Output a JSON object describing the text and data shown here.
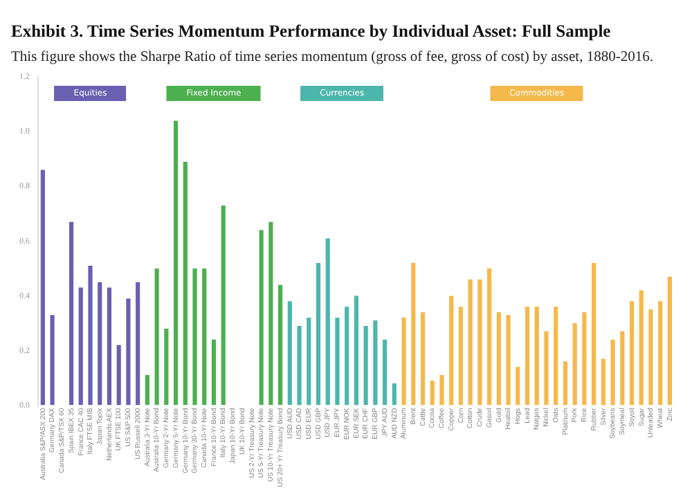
{
  "chart_data": {
    "type": "bar",
    "title": "Exhibit 3. Time Series Momentum Performance by Individual Asset: Full Sample",
    "subtitle": "This figure shows the Sharpe Ratio of time series momentum (gross of fee, gross of cost) by asset, 1880-2016.",
    "categories": [
      "Australia S&P/ASX 200",
      "Germany DAX",
      "Canada S&P/TSX 60",
      "Spain IBEX 35",
      "France CAC 40",
      "Italy FTSE MIB",
      "Japan Topix",
      "Netherlands AEX",
      "UK FTSE 100",
      "US S&P 500",
      "US Russell 2000",
      "Australia 3-Yr Note",
      "Australia 10-Yr Bond",
      "Germany 2-Yr Note",
      "Germany 5-Yr Note",
      "Germany 10-Yr Bond",
      "Germany 30-Yr Bond",
      "Canada 10-Yr Note",
      "France 10-Yr Bond",
      "Italy 10-Yr Bond",
      "Japan 10-Yr Bond",
      "UK 10-Yr Bond",
      "US 2-Yr Treasury Note",
      "US 5-Yr Treasury Note",
      "US 10-Yr Treasury Note",
      "US 20+ Yr Treasury Bond",
      "USD AUD",
      "USD CAD",
      "USD EUR",
      "USD GBP",
      "USD JPY",
      "EUR JPY",
      "EUR NOK",
      "EUR SEK",
      "EUR CHF",
      "EUR GBP",
      "JPY AUD",
      "AUD NZD",
      "Aluminum",
      "Brent",
      "Cattle",
      "Cocoa",
      "Coffee",
      "Copper",
      "Corn",
      "Cotton",
      "Crude",
      "Gasoil",
      "Gold",
      "Heatoil",
      "Hogs",
      "Lead",
      "Natgas",
      "Nickel",
      "Oats",
      "Platinum",
      "Pork",
      "Rice",
      "Rubber",
      "Silver",
      "Soybeans",
      "Soymeal",
      "Soyoil",
      "Sugar",
      "Unleaded",
      "Wheat",
      "Zinc"
    ],
    "series": [
      {
        "name": "Equities",
        "color": "#6a5fb0",
        "values": [
          0.86,
          0.33,
          null,
          0.67,
          0.43,
          0.51,
          0.45,
          0.43,
          0.22,
          0.39,
          0.45,
          null,
          null,
          null,
          null,
          null,
          null,
          null,
          null,
          null,
          null,
          null,
          null,
          null,
          null,
          null,
          null,
          null,
          null,
          null,
          null,
          null,
          null,
          null,
          null,
          null,
          null,
          null,
          null,
          null,
          null,
          null,
          null,
          null,
          null,
          null,
          null,
          null,
          null,
          null,
          null,
          null,
          null,
          null,
          null,
          null,
          null,
          null,
          null,
          null,
          null,
          null,
          null,
          null,
          null,
          null,
          null
        ]
      },
      {
        "name": "Fixed Income",
        "color": "#4caf50",
        "values": [
          null,
          null,
          null,
          null,
          null,
          null,
          null,
          null,
          null,
          null,
          null,
          0.11,
          0.5,
          0.28,
          1.04,
          0.89,
          0.5,
          0.5,
          0.24,
          0.73,
          null,
          null,
          null,
          0.64,
          0.67,
          0.44,
          null,
          null,
          null,
          null,
          null,
          null,
          null,
          null,
          null,
          null,
          null,
          null,
          null,
          null,
          null,
          null,
          null,
          null,
          null,
          null,
          null,
          null,
          null,
          null,
          null,
          null,
          null,
          null,
          null,
          null,
          null,
          null,
          null,
          null,
          null,
          null,
          null,
          null,
          null,
          null,
          null
        ]
      },
      {
        "name": "Currencies",
        "color": "#4db6ac",
        "values": [
          null,
          null,
          null,
          null,
          null,
          null,
          null,
          null,
          null,
          null,
          null,
          null,
          null,
          null,
          null,
          null,
          null,
          null,
          null,
          null,
          null,
          null,
          null,
          null,
          null,
          null,
          0.38,
          0.29,
          0.32,
          0.52,
          0.61,
          0.32,
          0.36,
          0.4,
          0.29,
          0.31,
          0.24,
          0.08,
          null,
          null,
          null,
          null,
          null,
          null,
          null,
          null,
          null,
          null,
          null,
          null,
          null,
          null,
          null,
          null,
          null,
          null,
          null,
          null,
          null,
          null,
          null,
          null,
          null,
          null,
          null,
          null,
          null
        ]
      },
      {
        "name": "Commodities",
        "color": "#f5b84a",
        "values": [
          null,
          null,
          null,
          null,
          null,
          null,
          null,
          null,
          null,
          null,
          null,
          null,
          null,
          null,
          null,
          null,
          null,
          null,
          null,
          null,
          null,
          null,
          null,
          null,
          null,
          null,
          null,
          null,
          null,
          null,
          null,
          null,
          null,
          null,
          null,
          null,
          null,
          null,
          0.32,
          0.52,
          0.34,
          0.09,
          0.11,
          0.4,
          0.36,
          0.46,
          0.46,
          0.5,
          0.34,
          0.33,
          0.14,
          0.36,
          0.36,
          0.27,
          0.36,
          0.16,
          0.3,
          0.34,
          0.52,
          0.17,
          0.24,
          0.27,
          0.38,
          0.42,
          0.35,
          0.38,
          0.47
        ]
      }
    ],
    "ylim": [
      0,
      1.2
    ],
    "yticks": [
      {
        "value": 0,
        "label": "0.0"
      },
      {
        "value": 0.2,
        "label": "0.2"
      },
      {
        "value": 0.4,
        "label": "0.4"
      },
      {
        "value": 0.6,
        "label": "0.6"
      },
      {
        "value": 0.8,
        "label": "0.8"
      },
      {
        "value": 1,
        "label": "1.0"
      },
      {
        "value": 1.2,
        "label": "1.2"
      }
    ],
    "grid": false,
    "legend": "top"
  }
}
